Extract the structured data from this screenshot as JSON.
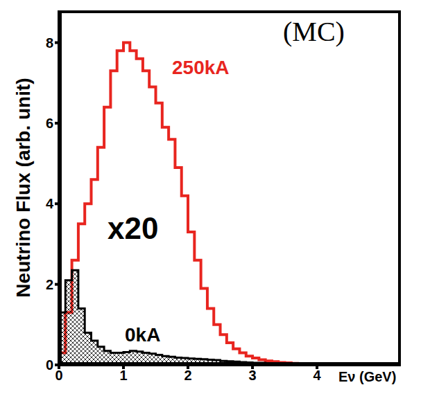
{
  "chart_data": {
    "type": "histogram",
    "x_label": "Eν (GeV)",
    "y_label": "Neutrino Flux (arb. unit)",
    "annotations": [
      "(MC)",
      "x20"
    ],
    "bins": [
      0,
      0.1,
      0.2,
      0.3,
      0.4,
      0.5,
      0.6,
      0.7,
      0.8,
      0.9,
      1.0,
      1.1,
      1.2,
      1.3,
      1.4,
      1.5,
      1.6,
      1.7,
      1.8,
      1.9,
      2.0,
      2.1,
      2.2,
      2.3,
      2.4,
      2.5,
      2.6,
      2.7,
      2.8,
      2.9,
      3.0,
      3.1,
      3.2,
      3.3,
      3.4,
      3.5,
      3.6,
      3.7,
      3.8,
      3.9,
      4.0,
      4.1,
      4.2,
      4.3,
      4.4,
      4.5,
      4.6,
      4.7,
      4.8,
      4.9,
      5.0,
      5.1,
      5.2,
      5.3
    ],
    "series": [
      {
        "name": "250kA",
        "color": "#e8251f",
        "values": [
          0.3,
          1.3,
          2.6,
          3.5,
          4.0,
          4.6,
          5.4,
          6.4,
          7.3,
          7.8,
          8.0,
          7.8,
          7.6,
          7.3,
          6.9,
          6.5,
          5.9,
          5.6,
          4.9,
          4.2,
          3.3,
          2.6,
          1.9,
          1.4,
          1.0,
          0.75,
          0.55,
          0.4,
          0.3,
          0.22,
          0.17,
          0.13,
          0.1,
          0.08,
          0.06,
          0.05,
          0.04,
          0.03,
          0.03,
          0.02,
          0.02,
          0.02,
          0.02,
          0.01,
          0.01,
          0.01,
          0.01,
          0.01,
          0.01,
          0.01,
          0.01,
          0.01,
          0.01
        ]
      },
      {
        "name": "0kA",
        "color": "#000000",
        "values": [
          1.3,
          2.1,
          2.35,
          1.4,
          0.8,
          0.6,
          0.45,
          0.35,
          0.3,
          0.3,
          0.32,
          0.35,
          0.33,
          0.3,
          0.28,
          0.25,
          0.22,
          0.2,
          0.18,
          0.17,
          0.16,
          0.15,
          0.14,
          0.13,
          0.12,
          0.1,
          0.09,
          0.08,
          0.07,
          0.06,
          0.05,
          0.05,
          0.04,
          0.04,
          0.03,
          0.03,
          0.03,
          0.02,
          0.02,
          0.02,
          0.02,
          0.01,
          0.01,
          0.01,
          0.01,
          0.01,
          0.01,
          0.01,
          0.01,
          0.01,
          0.01,
          0.01,
          0.01
        ]
      }
    ],
    "xlim": [
      0,
      5.3
    ],
    "ylim": [
      0,
      8.8
    ],
    "xticks": [
      0,
      1,
      2,
      3,
      4
    ],
    "yticks": [
      0,
      2,
      4,
      6,
      8
    ],
    "grid": false
  }
}
